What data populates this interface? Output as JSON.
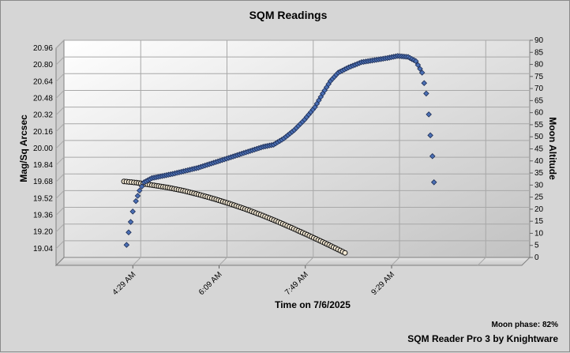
{
  "chart_data": {
    "type": "scatter",
    "title": "SQM Readings",
    "xlabel": "Time on 7/6/2025",
    "ylabel": "Mag/Sq Arcsec",
    "y2label": "Moon Altitude",
    "x_tick_labels": [
      "4:29 AM",
      "6:09 AM",
      "7:49 AM",
      "9:29 AM"
    ],
    "x_range_minutes": [
      180,
      720
    ],
    "ylim": [
      18.88,
      20.96
    ],
    "y_ticks": [
      "19.04",
      "19.20",
      "19.36",
      "19.52",
      "19.68",
      "19.84",
      "20.00",
      "20.16",
      "20.32",
      "20.48",
      "20.64",
      "20.80",
      "20.96"
    ],
    "y2lim": [
      0,
      90
    ],
    "y2_ticks": [
      "0",
      "5",
      "10",
      "15",
      "20",
      "25",
      "30",
      "35",
      "40",
      "45",
      "50",
      "55",
      "60",
      "65",
      "70",
      "75",
      "80",
      "85",
      "90"
    ],
    "grid": true,
    "series": [
      {
        "axis": "left",
        "color": "#4a6fb5",
        "marker": "diamond",
        "points": [
          [
            4.21,
            19.0
          ],
          [
            4.25,
            19.12
          ],
          [
            4.29,
            19.22
          ],
          [
            4.33,
            19.32
          ],
          [
            4.39,
            19.42
          ],
          [
            4.46,
            19.52
          ],
          [
            4.55,
            19.6
          ],
          [
            4.7,
            19.64
          ],
          [
            4.9,
            19.66
          ],
          [
            5.1,
            19.68
          ],
          [
            5.35,
            19.71
          ],
          [
            5.6,
            19.74
          ],
          [
            5.85,
            19.78
          ],
          [
            6.1,
            19.82
          ],
          [
            6.35,
            19.86
          ],
          [
            6.6,
            19.9
          ],
          [
            6.85,
            19.94
          ],
          [
            7.05,
            19.96
          ],
          [
            7.25,
            20.02
          ],
          [
            7.45,
            20.1
          ],
          [
            7.65,
            20.2
          ],
          [
            7.85,
            20.32
          ],
          [
            8.0,
            20.45
          ],
          [
            8.15,
            20.57
          ],
          [
            8.3,
            20.65
          ],
          [
            8.5,
            20.7
          ],
          [
            8.75,
            20.75
          ],
          [
            9.0,
            20.77
          ],
          [
            9.25,
            20.79
          ],
          [
            9.45,
            20.81
          ],
          [
            9.65,
            20.8
          ],
          [
            9.8,
            20.76
          ],
          [
            9.92,
            20.65
          ],
          [
            10.0,
            20.45
          ],
          [
            10.05,
            20.25
          ],
          [
            10.08,
            20.05
          ],
          [
            10.12,
            19.85
          ],
          [
            10.15,
            19.6
          ]
        ]
      },
      {
        "axis": "right",
        "color": "#f5ead4",
        "marker": "circle",
        "points": [
          [
            4.16,
            31.5
          ],
          [
            4.4,
            31.0
          ],
          [
            4.7,
            30.0
          ],
          [
            5.0,
            29.0
          ],
          [
            5.3,
            27.7
          ],
          [
            5.6,
            26.1
          ],
          [
            5.9,
            24.3
          ],
          [
            6.2,
            22.3
          ],
          [
            6.5,
            20.1
          ],
          [
            6.8,
            17.7
          ],
          [
            7.1,
            15.1
          ],
          [
            7.4,
            12.3
          ],
          [
            7.7,
            9.4
          ],
          [
            8.0,
            6.4
          ],
          [
            8.25,
            3.8
          ],
          [
            8.43,
            1.9
          ]
        ]
      }
    ]
  },
  "footer": {
    "moon_phase": "Moon phase: 82%",
    "credit": "SQM Reader Pro 3 by Knightware"
  }
}
